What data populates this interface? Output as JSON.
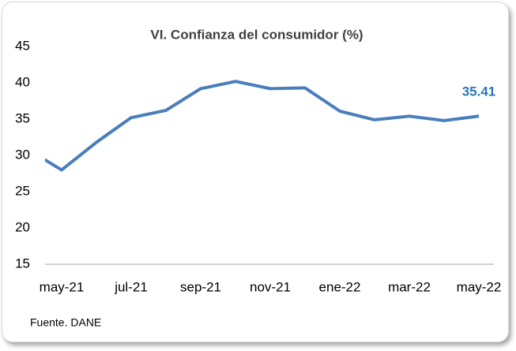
{
  "chart_data": {
    "type": "line",
    "title": "VI. Confianza del consumidor (%)",
    "categories": [
      null,
      "may-21",
      null,
      "jul-21",
      null,
      "sep-21",
      null,
      "nov-21",
      null,
      "ene-22",
      null,
      "mar-22",
      null,
      "may-22"
    ],
    "values": [
      30.9,
      28.0,
      31.8,
      35.2,
      36.2,
      39.2,
      40.2,
      39.2,
      39.3,
      36.1,
      34.9,
      35.4,
      34.8,
      35.41
    ],
    "color": "#4a7ebb",
    "label_color": "#2e75b6",
    "label_last": true,
    "ylim": [
      15,
      45
    ],
    "yticks": [
      15,
      20,
      25,
      30,
      35,
      40,
      45
    ],
    "grid": false,
    "source": "Fuente. DANE"
  }
}
